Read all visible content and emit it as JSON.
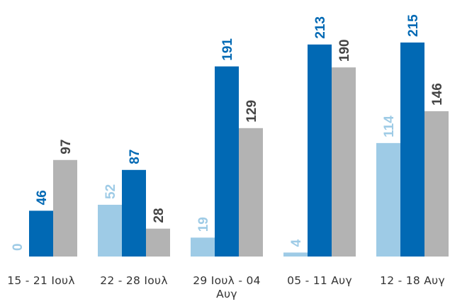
{
  "chart_data": {
    "type": "bar",
    "categories": [
      "15 - 21 Ιουλ",
      "22 - 28 Ιουλ",
      "29 Ιουλ - 04 Αυγ",
      "05 - 11 Αυγ",
      "12 - 18 Αυγ"
    ],
    "category_lines": [
      [
        "15 - 21 Ιουλ"
      ],
      [
        "22 - 28 Ιουλ"
      ],
      [
        "29 Ιουλ - 04",
        "Αυγ"
      ],
      [
        "05 - 11 Αυγ"
      ],
      [
        "12 - 18 Αυγ"
      ]
    ],
    "series": [
      {
        "values": [
          0,
          52,
          19,
          4,
          114
        ],
        "color": "#9ecbe6"
      },
      {
        "values": [
          46,
          87,
          191,
          213,
          215
        ],
        "color": "#0169b4"
      },
      {
        "values": [
          97,
          28,
          129,
          190,
          146
        ],
        "color": "#b3b3b3"
      }
    ],
    "label_colors": [
      "#9ecbe6",
      "#0169b4",
      "#444444"
    ],
    "ylim": [
      0,
      215
    ],
    "grid": false,
    "legend": "none",
    "data_labels": true
  }
}
